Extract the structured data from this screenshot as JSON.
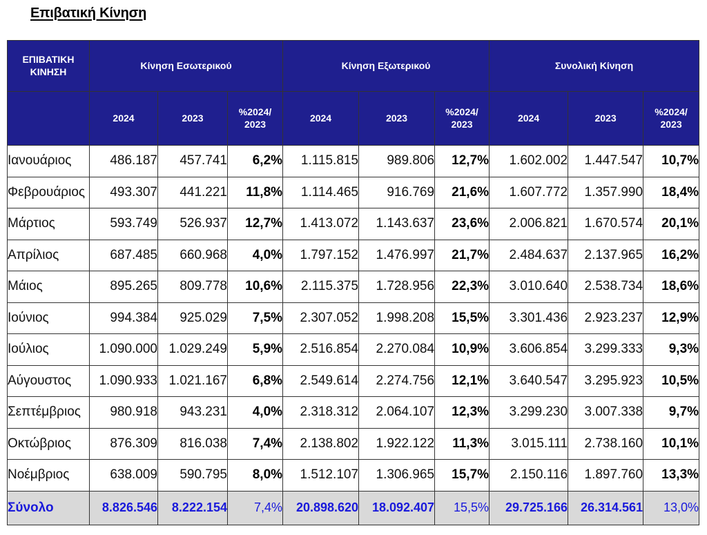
{
  "title": "Επιβατική Κίνηση",
  "header": {
    "corner": "ΕΠΙΒΑΤΙΚΗ ΚΙΝΗΣΗ",
    "groups": [
      "Κίνηση Εσωτερικού",
      "Κίνηση Εξωτερικού",
      "Συνολική Κίνηση"
    ],
    "year_a": "2024",
    "year_b": "2023",
    "pct": "%2024/ 2023"
  },
  "rows": [
    {
      "month": "Ιανουάριος",
      "dom_2024": "486.187",
      "dom_2023": "457.741",
      "dom_pct": "6,2%",
      "int_2024": "1.115.815",
      "int_2023": "989.806",
      "int_pct": "12,7%",
      "tot_2024": "1.602.002",
      "tot_2023": "1.447.547",
      "tot_pct": "10,7%"
    },
    {
      "month": "Φεβρουάριος",
      "dom_2024": "493.307",
      "dom_2023": "441.221",
      "dom_pct": "11,8%",
      "int_2024": "1.114.465",
      "int_2023": "916.769",
      "int_pct": "21,6%",
      "tot_2024": "1.607.772",
      "tot_2023": "1.357.990",
      "tot_pct": "18,4%"
    },
    {
      "month": "Μάρτιος",
      "dom_2024": "593.749",
      "dom_2023": "526.937",
      "dom_pct": "12,7%",
      "int_2024": "1.413.072",
      "int_2023": "1.143.637",
      "int_pct": "23,6%",
      "tot_2024": "2.006.821",
      "tot_2023": "1.670.574",
      "tot_pct": "20,1%"
    },
    {
      "month": "Απρίλιος",
      "dom_2024": "687.485",
      "dom_2023": "660.968",
      "dom_pct": "4,0%",
      "int_2024": "1.797.152",
      "int_2023": "1.476.997",
      "int_pct": "21,7%",
      "tot_2024": "2.484.637",
      "tot_2023": "2.137.965",
      "tot_pct": "16,2%"
    },
    {
      "month": "Μάιος",
      "dom_2024": "895.265",
      "dom_2023": "809.778",
      "dom_pct": "10,6%",
      "int_2024": "2.115.375",
      "int_2023": "1.728.956",
      "int_pct": "22,3%",
      "tot_2024": "3.010.640",
      "tot_2023": "2.538.734",
      "tot_pct": "18,6%"
    },
    {
      "month": "Ιούνιος",
      "dom_2024": "994.384",
      "dom_2023": "925.029",
      "dom_pct": "7,5%",
      "int_2024": "2.307.052",
      "int_2023": "1.998.208",
      "int_pct": "15,5%",
      "tot_2024": "3.301.436",
      "tot_2023": "2.923.237",
      "tot_pct": "12,9%"
    },
    {
      "month": "Ιούλιος",
      "dom_2024": "1.090.000",
      "dom_2023": "1.029.249",
      "dom_pct": "5,9%",
      "int_2024": "2.516.854",
      "int_2023": "2.270.084",
      "int_pct": "10,9%",
      "tot_2024": "3.606.854",
      "tot_2023": "3.299.333",
      "tot_pct": "9,3%"
    },
    {
      "month": "Αύγουστος",
      "dom_2024": "1.090.933",
      "dom_2023": "1.021.167",
      "dom_pct": "6,8%",
      "int_2024": "2.549.614",
      "int_2023": "2.274.756",
      "int_pct": "12,1%",
      "tot_2024": "3.640.547",
      "tot_2023": "3.295.923",
      "tot_pct": "10,5%"
    },
    {
      "month": "Σεπτέμβριος",
      "dom_2024": "980.918",
      "dom_2023": "943.231",
      "dom_pct": "4,0%",
      "int_2024": "2.318.312",
      "int_2023": "2.064.107",
      "int_pct": "12,3%",
      "tot_2024": "3.299.230",
      "tot_2023": "3.007.338",
      "tot_pct": "9,7%"
    },
    {
      "month": "Οκτώβριος",
      "dom_2024": "876.309",
      "dom_2023": "816.038",
      "dom_pct": "7,4%",
      "int_2024": "2.138.802",
      "int_2023": "1.922.122",
      "int_pct": "11,3%",
      "tot_2024": "3.015.111",
      "tot_2023": "2.738.160",
      "tot_pct": "10,1%"
    },
    {
      "month": "Νοέμβριος",
      "dom_2024": "638.009",
      "dom_2023": "590.795",
      "dom_pct": "8,0%",
      "int_2024": "1.512.107",
      "int_2023": "1.306.965",
      "int_pct": "15,7%",
      "tot_2024": "2.150.116",
      "tot_2023": "1.897.760",
      "tot_pct": "13,3%"
    }
  ],
  "total": {
    "month": "Σύνολο",
    "dom_2024": "8.826.546",
    "dom_2023": "8.222.154",
    "dom_pct": "7,4%",
    "int_2024": "20.898.620",
    "int_2023": "18.092.407",
    "int_pct": "15,5%",
    "tot_2024": "29.725.166",
    "tot_2023": "26.314.561",
    "tot_pct": "13,0%"
  },
  "colors": {
    "header_bg": "#1f1f8f",
    "total_bg": "#d9d9d9",
    "total_text": "#1a1adb"
  }
}
